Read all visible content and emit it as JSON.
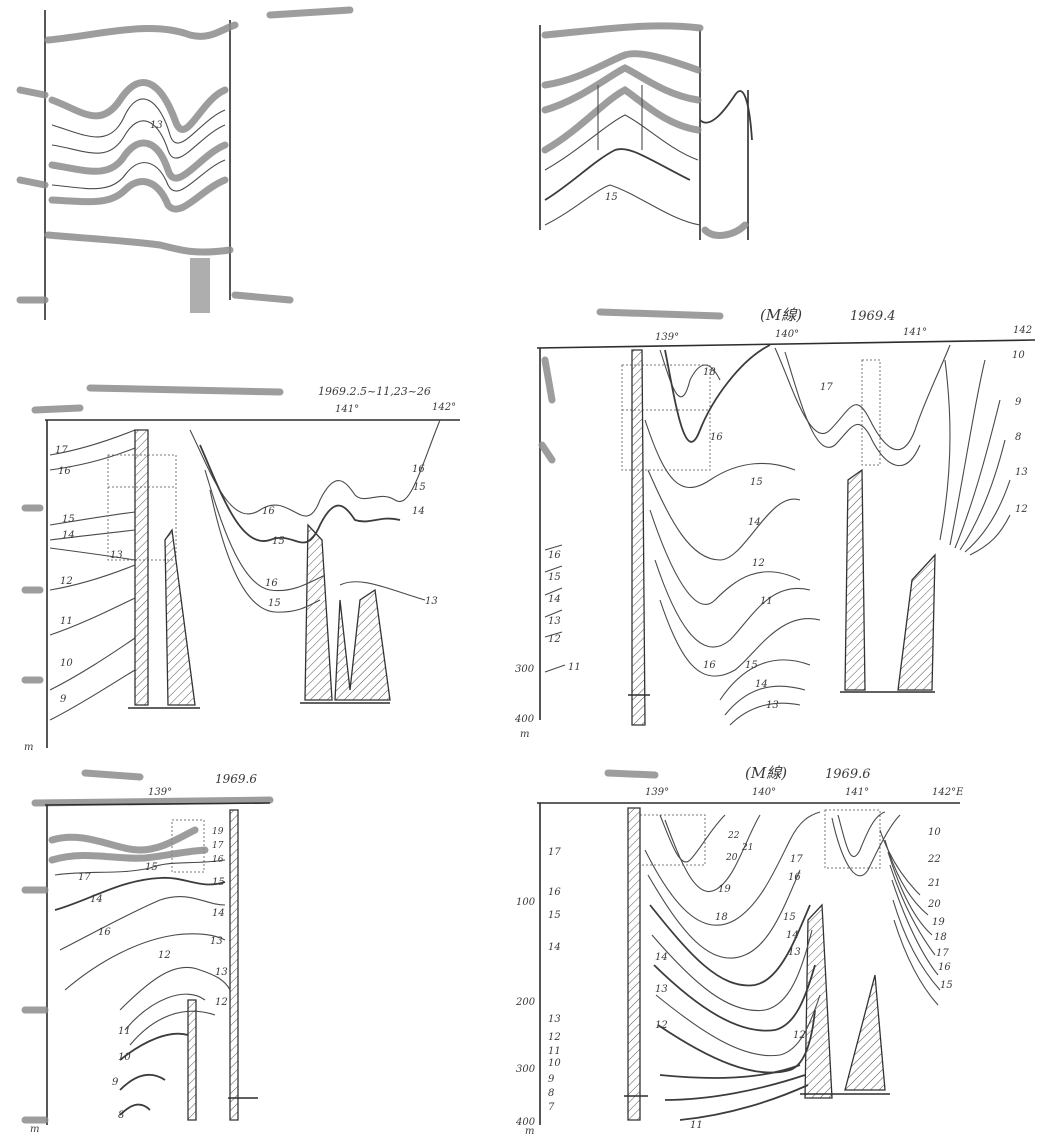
{
  "sections": {
    "a": {
      "title": "",
      "date": "",
      "depth_unit": "",
      "lon_labels": [],
      "contour_labels": [
        "13"
      ]
    },
    "b": {
      "title": "",
      "date": "",
      "depth_unit": "",
      "lon_labels": [],
      "contour_labels": [
        "15"
      ]
    },
    "c": {
      "title": "",
      "date": "1969.2.5~11,23~26",
      "depth_unit": "m",
      "lon_labels": [
        "141°",
        "142°"
      ],
      "contour_labels": [
        "17",
        "16",
        "15",
        "14",
        "13",
        "12",
        "11",
        "10",
        "9",
        "16",
        "15",
        "14",
        "16",
        "15",
        "16",
        "15",
        "13"
      ]
    },
    "d": {
      "title": "(M線)",
      "date": "1969.4",
      "depth_unit": "m",
      "lon_labels": [
        "139°",
        "140°",
        "141°",
        "142"
      ],
      "depth_ticks": [
        "300",
        "400"
      ],
      "contour_labels": [
        "16",
        "15",
        "14",
        "13",
        "12",
        "11",
        "16",
        "15",
        "14",
        "13",
        "12",
        "11",
        "10",
        "9",
        "8",
        "18",
        "17",
        "16",
        "15",
        "14",
        "13",
        "12"
      ]
    },
    "e": {
      "title": "",
      "date": "1969.6",
      "depth_unit": "m",
      "lon_labels": [
        "139°"
      ],
      "contour_labels": [
        "17",
        "16",
        "15",
        "14",
        "13",
        "12",
        "11",
        "10",
        "9",
        "8",
        "19",
        "17",
        "16",
        "15",
        "14",
        "13",
        "12"
      ]
    },
    "f": {
      "title": "(M線)",
      "date": "1969.6",
      "depth_unit": "m",
      "lon_labels": [
        "139°",
        "140°",
        "141°",
        "142°E"
      ],
      "depth_ticks": [
        "100",
        "200",
        "300",
        "400"
      ],
      "contour_labels": [
        "17",
        "16",
        "15",
        "14",
        "13",
        "12",
        "11",
        "10",
        "9",
        "8",
        "7",
        "22",
        "21",
        "20",
        "19",
        "18",
        "17",
        "16",
        "15",
        "14",
        "13",
        "12",
        "11",
        "10",
        "22",
        "21",
        "20",
        "19",
        "18",
        "17",
        "16",
        "15",
        "14",
        "13",
        "12"
      ]
    }
  }
}
